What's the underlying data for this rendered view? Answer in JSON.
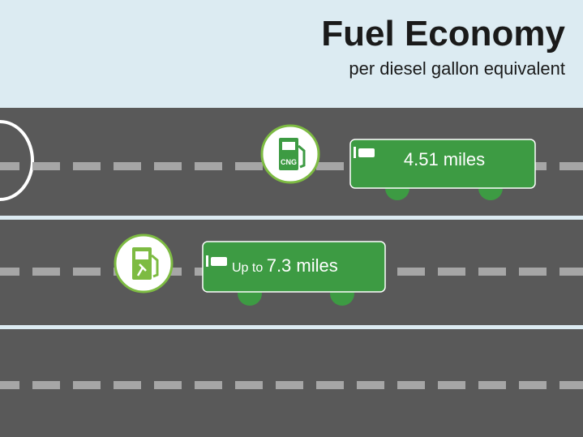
{
  "header": {
    "title": "Fuel Economy",
    "subtitle": "per diesel gallon equivalent"
  },
  "lanes": [
    {
      "icon_label": "CNG",
      "label": "4.51 miles"
    },
    {
      "prefix": "Up to",
      "label": "7.3 miles"
    }
  ]
}
